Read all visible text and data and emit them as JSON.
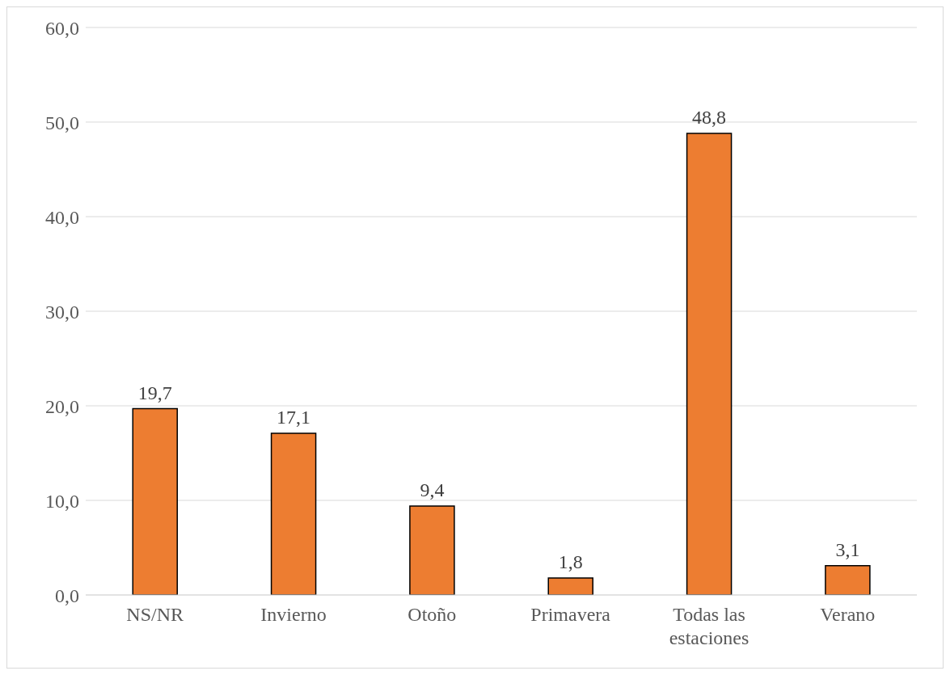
{
  "chart_data": {
    "type": "bar",
    "categories": [
      "NS/NR",
      "Invierno",
      "Otoño",
      "Primavera",
      "Todas las estaciones",
      "Verano"
    ],
    "values": [
      19.7,
      17.1,
      9.4,
      1.8,
      48.8,
      3.1
    ],
    "value_labels": [
      "19,7",
      "17,1",
      "9,4",
      "1,8",
      "48,8",
      "3,1"
    ],
    "color": "#ed7d31",
    "ylim": [
      0,
      60
    ],
    "yticks": [
      {
        "value": 0,
        "label": "0,0"
      },
      {
        "value": 10,
        "label": "10,0"
      },
      {
        "value": 20,
        "label": "20,0"
      },
      {
        "value": 30,
        "label": "30,0"
      },
      {
        "value": 40,
        "label": "40,0"
      },
      {
        "value": 50,
        "label": "50,0"
      },
      {
        "value": 60,
        "label": "60,0"
      }
    ],
    "grid": "y",
    "legend": false
  }
}
